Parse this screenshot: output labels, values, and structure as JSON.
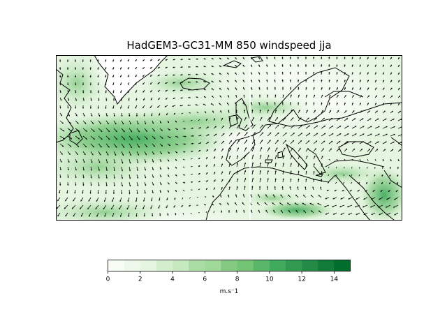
{
  "title": "HadGEM3-GC31-MM 850 windspeed jja",
  "colorbar": {
    "label": "m.s⁻1",
    "min": 0,
    "max": 15,
    "levels": 15,
    "ticks": [
      0,
      2,
      4,
      6,
      8,
      10,
      12,
      14
    ],
    "tick_labels": [
      "0",
      "2",
      "4",
      "6",
      "8",
      "10",
      "12",
      "14"
    ],
    "colors": [
      "#f7fcf5",
      "#eef8ea",
      "#e5f5e0",
      "#d3eecd",
      "#c7e9c0",
      "#aadda4",
      "#a1d99b",
      "#84ca83",
      "#74c476",
      "#5ab769",
      "#41ab5d",
      "#329b51",
      "#238b45",
      "#117b39",
      "#006d2c"
    ]
  },
  "map": {
    "region": "North Atlantic, Europe and North Africa",
    "land_color": "#ffffff",
    "ocean_base_color": "#e5f5e0",
    "coast_color": "#000000",
    "arrow_color": "#000000"
  }
}
